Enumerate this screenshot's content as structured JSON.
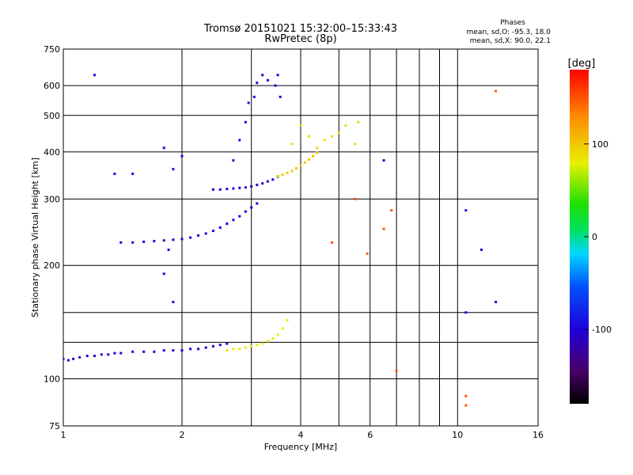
{
  "chart_data": {
    "type": "scatter",
    "title": "Tromsø 20151021 15:32:00–15:33:43",
    "subtitle": "RwPretec (8p)",
    "xlabel": "Frequency [MHz]",
    "ylabel": "Stationary phase Virtual Height [km]",
    "x_scale": "log",
    "y_scale": "log",
    "xlim": [
      1,
      16
    ],
    "ylim": [
      75,
      750
    ],
    "xticks": [
      1,
      2,
      4,
      6,
      10,
      16
    ],
    "xtick_labels": [
      "1",
      "2",
      "4",
      "6",
      "10",
      "16"
    ],
    "x_minor_gridlines": [
      3,
      5,
      7,
      8,
      9
    ],
    "yticks": [
      75,
      100,
      200,
      300,
      400,
      500,
      600,
      750
    ],
    "ytick_labels": [
      "75",
      "100",
      "200",
      "300",
      "400",
      "500",
      "600",
      "750"
    ],
    "y_minor_gridlines": [
      125,
      150
    ],
    "grid": true,
    "stats": {
      "heading": "Phases",
      "line_o": "mean, sd,O: -95.3, 18.0",
      "line_x": "mean, sd,X:  90.0, 22.1"
    },
    "colorbar": {
      "label": "[deg]",
      "range": [
        -180,
        180
      ],
      "ticks": [
        100,
        0,
        -100
      ],
      "tick_labels": [
        "100",
        "0",
        "-100"
      ],
      "colormap": "rainbow (black-violet-blue-cyan-green-yellow-orange-red)"
    },
    "series": [
      {
        "trace": "E-layer",
        "phase": -100,
        "points": [
          [
            1.0,
            113
          ],
          [
            1.03,
            112
          ],
          [
            1.06,
            113
          ],
          [
            1.1,
            114
          ],
          [
            1.15,
            115
          ],
          [
            1.2,
            115
          ],
          [
            1.25,
            116
          ],
          [
            1.3,
            116
          ],
          [
            1.35,
            117
          ],
          [
            1.4,
            117
          ],
          [
            1.5,
            118
          ],
          [
            1.6,
            118
          ],
          [
            1.7,
            118
          ],
          [
            1.8,
            119
          ],
          [
            1.9,
            119
          ],
          [
            2.0,
            119
          ],
          [
            2.1,
            120
          ],
          [
            2.2,
            120
          ],
          [
            2.3,
            121
          ],
          [
            2.4,
            122
          ],
          [
            2.5,
            123
          ],
          [
            2.6,
            124
          ]
        ]
      },
      {
        "trace": "E-layer (X)",
        "phase": 80,
        "points": [
          [
            2.6,
            119
          ],
          [
            2.7,
            120
          ],
          [
            2.8,
            120
          ],
          [
            2.9,
            121
          ],
          [
            3.0,
            122
          ],
          [
            3.1,
            123
          ],
          [
            3.2,
            124
          ],
          [
            3.3,
            126
          ],
          [
            3.4,
            128
          ],
          [
            3.5,
            131
          ],
          [
            3.6,
            136
          ],
          [
            3.7,
            143
          ]
        ]
      },
      {
        "trace": "F1-layer",
        "phase": -100,
        "points": [
          [
            1.4,
            230
          ],
          [
            1.5,
            230
          ],
          [
            1.6,
            231
          ],
          [
            1.7,
            232
          ],
          [
            1.8,
            233
          ],
          [
            1.9,
            234
          ],
          [
            2.0,
            235
          ],
          [
            2.1,
            237
          ],
          [
            2.2,
            240
          ],
          [
            2.3,
            243
          ],
          [
            2.4,
            247
          ],
          [
            2.5,
            252
          ],
          [
            2.6,
            258
          ],
          [
            2.7,
            264
          ],
          [
            2.8,
            270
          ],
          [
            2.9,
            278
          ],
          [
            3.0,
            285
          ],
          [
            3.1,
            292
          ]
        ]
      },
      {
        "trace": "F2-layer",
        "phase": -100,
        "points": [
          [
            2.4,
            318
          ],
          [
            2.5,
            318
          ],
          [
            2.6,
            319
          ],
          [
            2.7,
            320
          ],
          [
            2.8,
            321
          ],
          [
            2.9,
            322
          ],
          [
            3.0,
            324
          ],
          [
            3.1,
            327
          ],
          [
            3.2,
            330
          ],
          [
            3.3,
            334
          ],
          [
            3.4,
            338
          ],
          [
            3.5,
            344
          ]
        ]
      },
      {
        "trace": "F2-layer (X)",
        "phase": 100,
        "points": [
          [
            3.5,
            345
          ],
          [
            3.6,
            348
          ],
          [
            3.7,
            352
          ],
          [
            3.8,
            356
          ],
          [
            3.9,
            362
          ],
          [
            4.0,
            368
          ],
          [
            4.1,
            375
          ],
          [
            4.2,
            382
          ],
          [
            4.3,
            390
          ],
          [
            4.4,
            398
          ]
        ]
      },
      {
        "trace": "F2 spread",
        "phase": -100,
        "points": [
          [
            2.7,
            380
          ],
          [
            2.8,
            430
          ],
          [
            2.9,
            480
          ],
          [
            2.95,
            540
          ],
          [
            3.05,
            560
          ],
          [
            3.1,
            610
          ],
          [
            3.2,
            640
          ],
          [
            3.3,
            620
          ],
          [
            3.45,
            600
          ],
          [
            3.5,
            640
          ],
          [
            3.55,
            560
          ]
        ]
      },
      {
        "trace": "F2 spread (X)",
        "phase": 90,
        "points": [
          [
            3.8,
            420
          ],
          [
            4.0,
            470
          ],
          [
            4.2,
            440
          ],
          [
            4.4,
            410
          ],
          [
            4.6,
            430
          ],
          [
            4.8,
            440
          ],
          [
            5.0,
            450
          ],
          [
            5.2,
            470
          ],
          [
            5.5,
            420
          ],
          [
            5.6,
            480
          ]
        ]
      },
      {
        "trace": "scatter",
        "phase": -100,
        "points": [
          [
            1.2,
            640
          ],
          [
            1.8,
            410
          ],
          [
            1.9,
            360
          ],
          [
            2.0,
            390
          ],
          [
            1.35,
            350
          ],
          [
            1.5,
            350
          ],
          [
            1.8,
            190
          ],
          [
            1.85,
            220
          ],
          [
            1.9,
            160
          ],
          [
            6.5,
            380
          ],
          [
            10.5,
            280
          ],
          [
            11.5,
            220
          ],
          [
            10.5,
            150
          ],
          [
            12.5,
            160
          ]
        ]
      },
      {
        "trace": "scatter (X)",
        "phase": 150,
        "points": [
          [
            6.8,
            280
          ],
          [
            6.5,
            250
          ],
          [
            5.5,
            300
          ],
          [
            4.8,
            230
          ],
          [
            12.5,
            580
          ],
          [
            5.9,
            215
          ],
          [
            7.0,
            105
          ],
          [
            10.5,
            85
          ],
          [
            10.5,
            90
          ]
        ]
      }
    ]
  }
}
